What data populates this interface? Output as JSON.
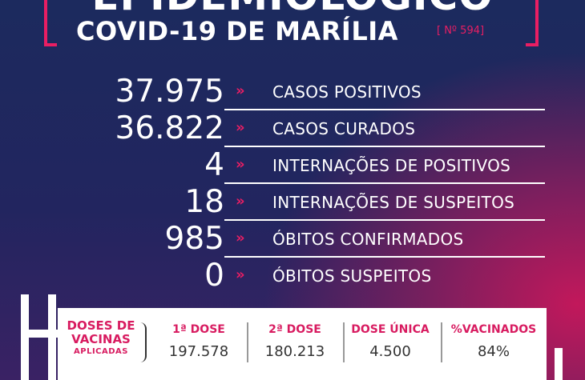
{
  "header": {
    "headline": "EPIDEMIOLÓGICO",
    "subtitle": "COVID-19 DE MARÍLIA",
    "edition": "[ Nº 594]"
  },
  "arrow_glyph": "»",
  "stats": [
    {
      "value": "37.975",
      "label": "CASOS POSITIVOS"
    },
    {
      "value": "36.822",
      "label": "CASOS CURADOS"
    },
    {
      "value": "4",
      "label": "INTERNAÇÕES DE POSITIVOS"
    },
    {
      "value": "18",
      "label": "INTERNAÇÕES DE SUSPEITOS"
    },
    {
      "value": "985",
      "label": "ÓBITOS CONFIRMADOS"
    },
    {
      "value": "0",
      "label": "ÓBITOS SUSPEITOS"
    }
  ],
  "vaccines": {
    "title_line1": "DOSES DE",
    "title_line2": "VACINAS",
    "title_line3": "APLICADAS",
    "columns": [
      {
        "header": "1ª DOSE",
        "value": "197.578"
      },
      {
        "header": "2ª DOSE",
        "value": "180.213"
      },
      {
        "header": "DOSE ÚNICA",
        "value": "4.500"
      },
      {
        "header": "%VACINADOS",
        "value": "84%"
      }
    ]
  },
  "colors": {
    "accent": "#e91e63",
    "background_top": "#1c2a5e",
    "background_glow": "#c2185b",
    "panel": "#ffffff"
  }
}
